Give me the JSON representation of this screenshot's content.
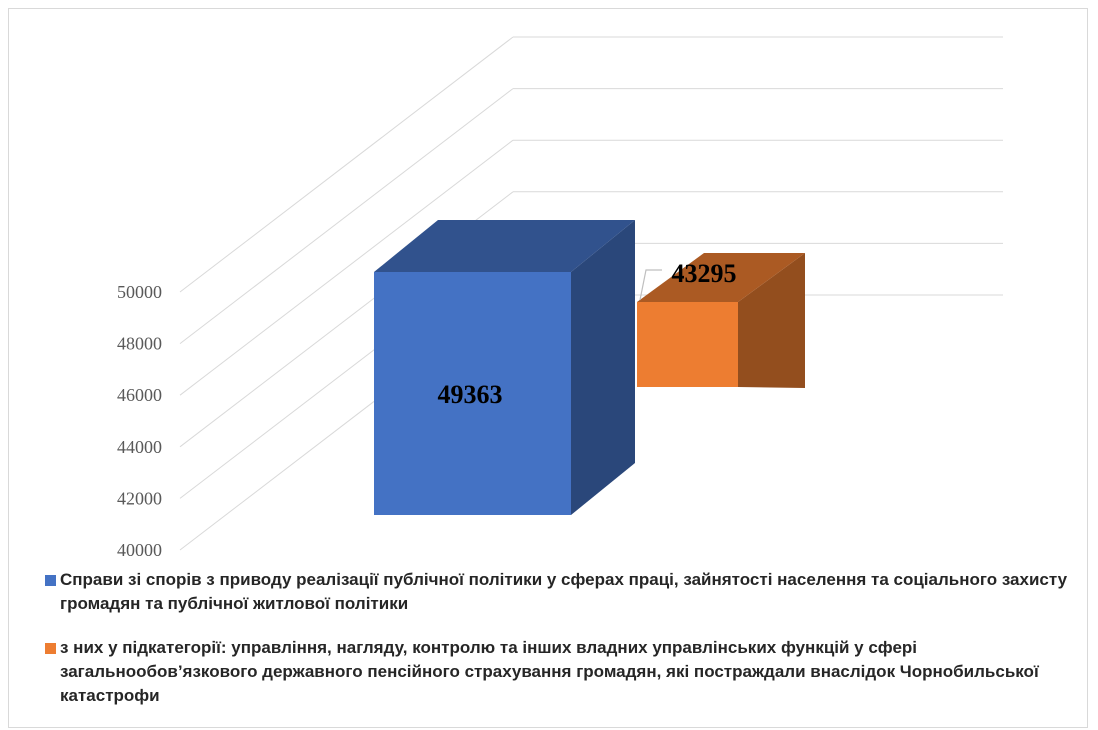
{
  "chart_data": {
    "type": "bar",
    "title": "",
    "xlabel": "",
    "ylabel": "",
    "ylim": [
      40000,
      50000
    ],
    "yticks": [
      40000,
      42000,
      44000,
      46000,
      48000,
      50000
    ],
    "grid": true,
    "legend_position": "bottom",
    "series": [
      {
        "name": "Справи зі спорів з приводу реалізації публічної політики у сферах праці, зайнятості населення та соціального захисту громадян та публічної житлової політики",
        "value": 49363,
        "label": "49363",
        "color": "#4472C4"
      },
      {
        "name": "з них у підкатегорії: управління, нагляду, контролю та інших владних управлінських функцій у сфері загальнообов’язкового державного пенсійного страхування громадян, які постраждали внаслідок Чорнобильської катастрофи",
        "value": 43295,
        "label": "43295",
        "color": "#ED7D31"
      }
    ]
  }
}
